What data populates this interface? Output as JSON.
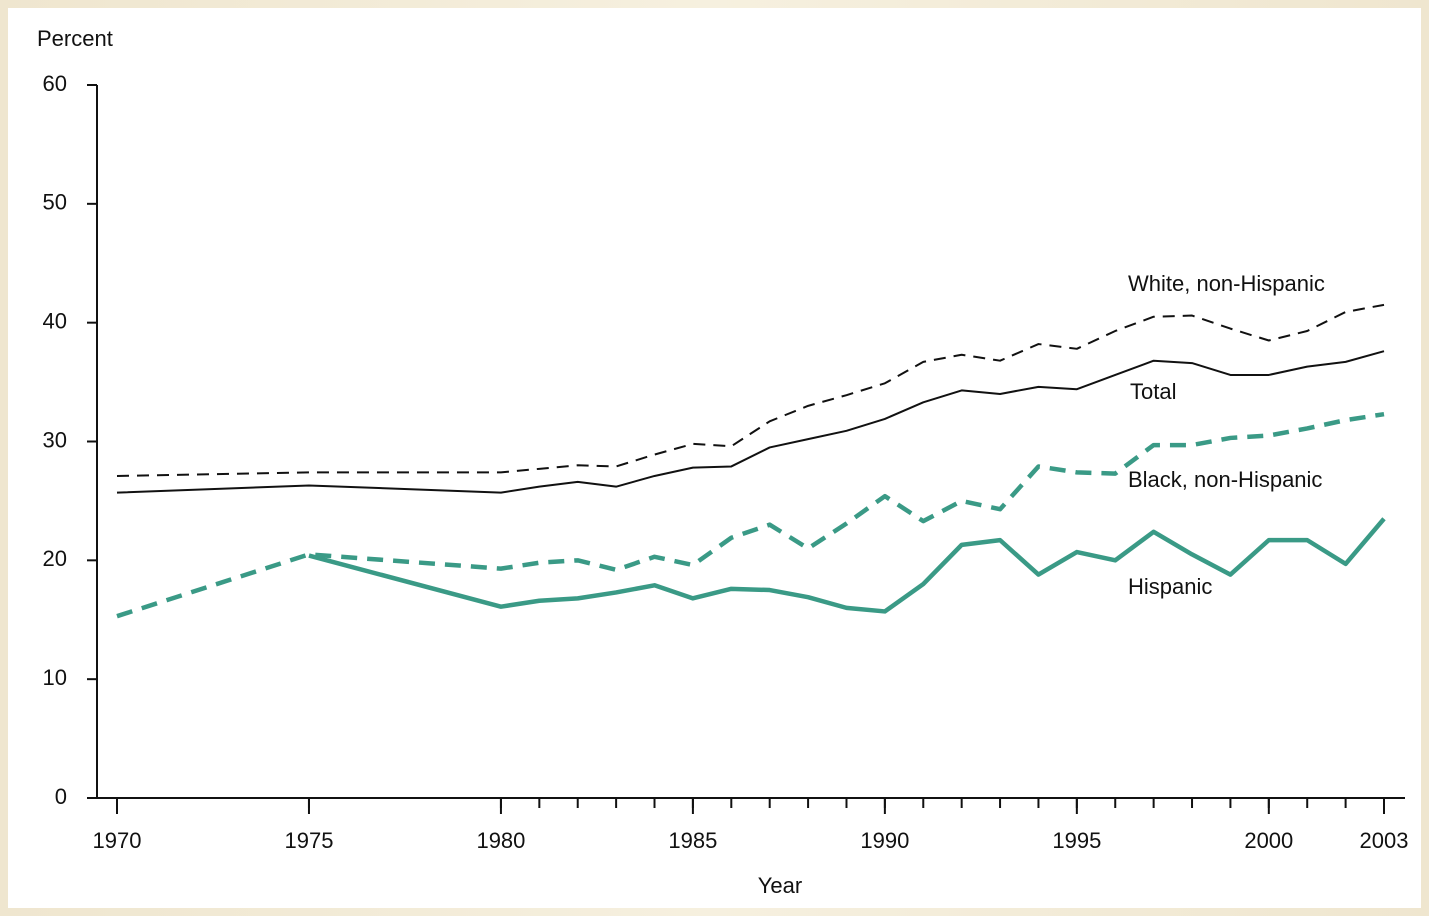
{
  "chart_data": {
    "type": "line",
    "ylabel": "Percent",
    "xlabel": "Year",
    "x": [
      1970,
      1975,
      1980,
      1981,
      1982,
      1983,
      1984,
      1985,
      1986,
      1987,
      1988,
      1989,
      1990,
      1991,
      1992,
      1993,
      1994,
      1995,
      1996,
      1997,
      1998,
      1999,
      2000,
      2001,
      2002,
      2003
    ],
    "series": [
      {
        "name": "White, non-Hispanic",
        "color": "#111111",
        "dashed": true,
        "linewidth": 2,
        "values": [
          27.1,
          27.4,
          27.4,
          27.7,
          28.0,
          27.9,
          28.9,
          29.8,
          29.6,
          31.7,
          33.0,
          33.9,
          34.9,
          36.7,
          37.3,
          36.8,
          38.2,
          37.8,
          39.3,
          40.5,
          40.6,
          39.5,
          38.5,
          39.3,
          40.9,
          41.5
        ]
      },
      {
        "name": "Total",
        "color": "#111111",
        "dashed": false,
        "linewidth": 2,
        "values": [
          25.7,
          26.3,
          25.7,
          26.2,
          26.6,
          26.2,
          27.1,
          27.8,
          27.9,
          29.5,
          30.2,
          30.9,
          31.9,
          33.3,
          34.3,
          34.0,
          34.6,
          34.4,
          35.6,
          36.8,
          36.6,
          35.6,
          35.6,
          36.3,
          36.7,
          37.6
        ]
      },
      {
        "name": "Black, non-Hispanic",
        "color": "#3a9a86",
        "dashed": true,
        "linewidth": 4.5,
        "values": [
          15.3,
          20.5,
          19.3,
          19.8,
          20.0,
          19.2,
          20.3,
          19.6,
          21.9,
          23.0,
          21.0,
          23.1,
          25.4,
          23.3,
          25.0,
          24.3,
          27.9,
          27.4,
          27.3,
          29.7,
          29.7,
          30.3,
          30.5,
          31.1,
          31.8,
          32.3
        ]
      },
      {
        "name": "Hispanic",
        "color": "#3a9a86",
        "dashed": false,
        "linewidth": 4.5,
        "values": [
          null,
          20.4,
          16.1,
          16.6,
          16.8,
          17.3,
          17.9,
          16.8,
          17.6,
          17.5,
          16.9,
          16.0,
          15.7,
          18.0,
          21.3,
          21.7,
          18.8,
          20.7,
          20.0,
          22.4,
          20.5,
          18.8,
          21.7,
          21.7,
          19.7,
          23.5
        ]
      }
    ],
    "xlim": [
      1969.5,
      2004.5
    ],
    "xticks": [
      1970,
      1975,
      1980,
      1985,
      1990,
      1995,
      2000,
      2003
    ],
    "ylim": [
      0,
      60
    ],
    "yticks": [
      0,
      10,
      20,
      30,
      40,
      50,
      60
    ]
  }
}
